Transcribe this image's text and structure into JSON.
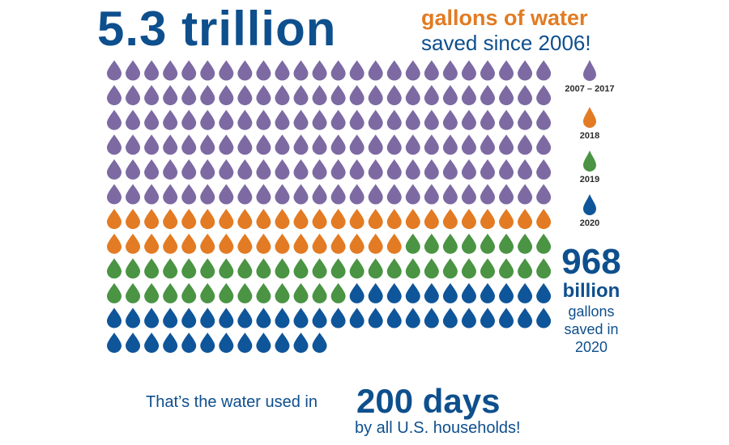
{
  "header": {
    "headline": "5.3 trillion",
    "subhead_1": "gallons of water",
    "subhead_2": "saved since 2006!"
  },
  "chart_data": {
    "type": "pictograph",
    "unit": "gallons of water",
    "series": [
      {
        "name": "2007 – 2017",
        "count": 144,
        "color": "#7d6aa3"
      },
      {
        "name": "2018",
        "count": 40,
        "color": "#e27b23"
      },
      {
        "name": "2019",
        "count": 45,
        "color": "#4a9444"
      },
      {
        "name": "2020",
        "count": 47,
        "color": "#0f5599"
      }
    ],
    "columns": 24
  },
  "legend": {
    "items": [
      {
        "label": "2007 – 2017",
        "color": "#7d6aa3"
      },
      {
        "label": "2018",
        "color": "#e27b23"
      },
      {
        "label": "2019",
        "color": "#4a9444"
      },
      {
        "label": "2020",
        "color": "#0f5599"
      }
    ]
  },
  "stat": {
    "number": "968",
    "unit": "billion",
    "line1": "gallons",
    "line2": "saved in",
    "line3": "2020"
  },
  "footer": {
    "prefix": "That’s the water used in",
    "highlight": "200 days",
    "suffix": "by all U.S. households!"
  }
}
